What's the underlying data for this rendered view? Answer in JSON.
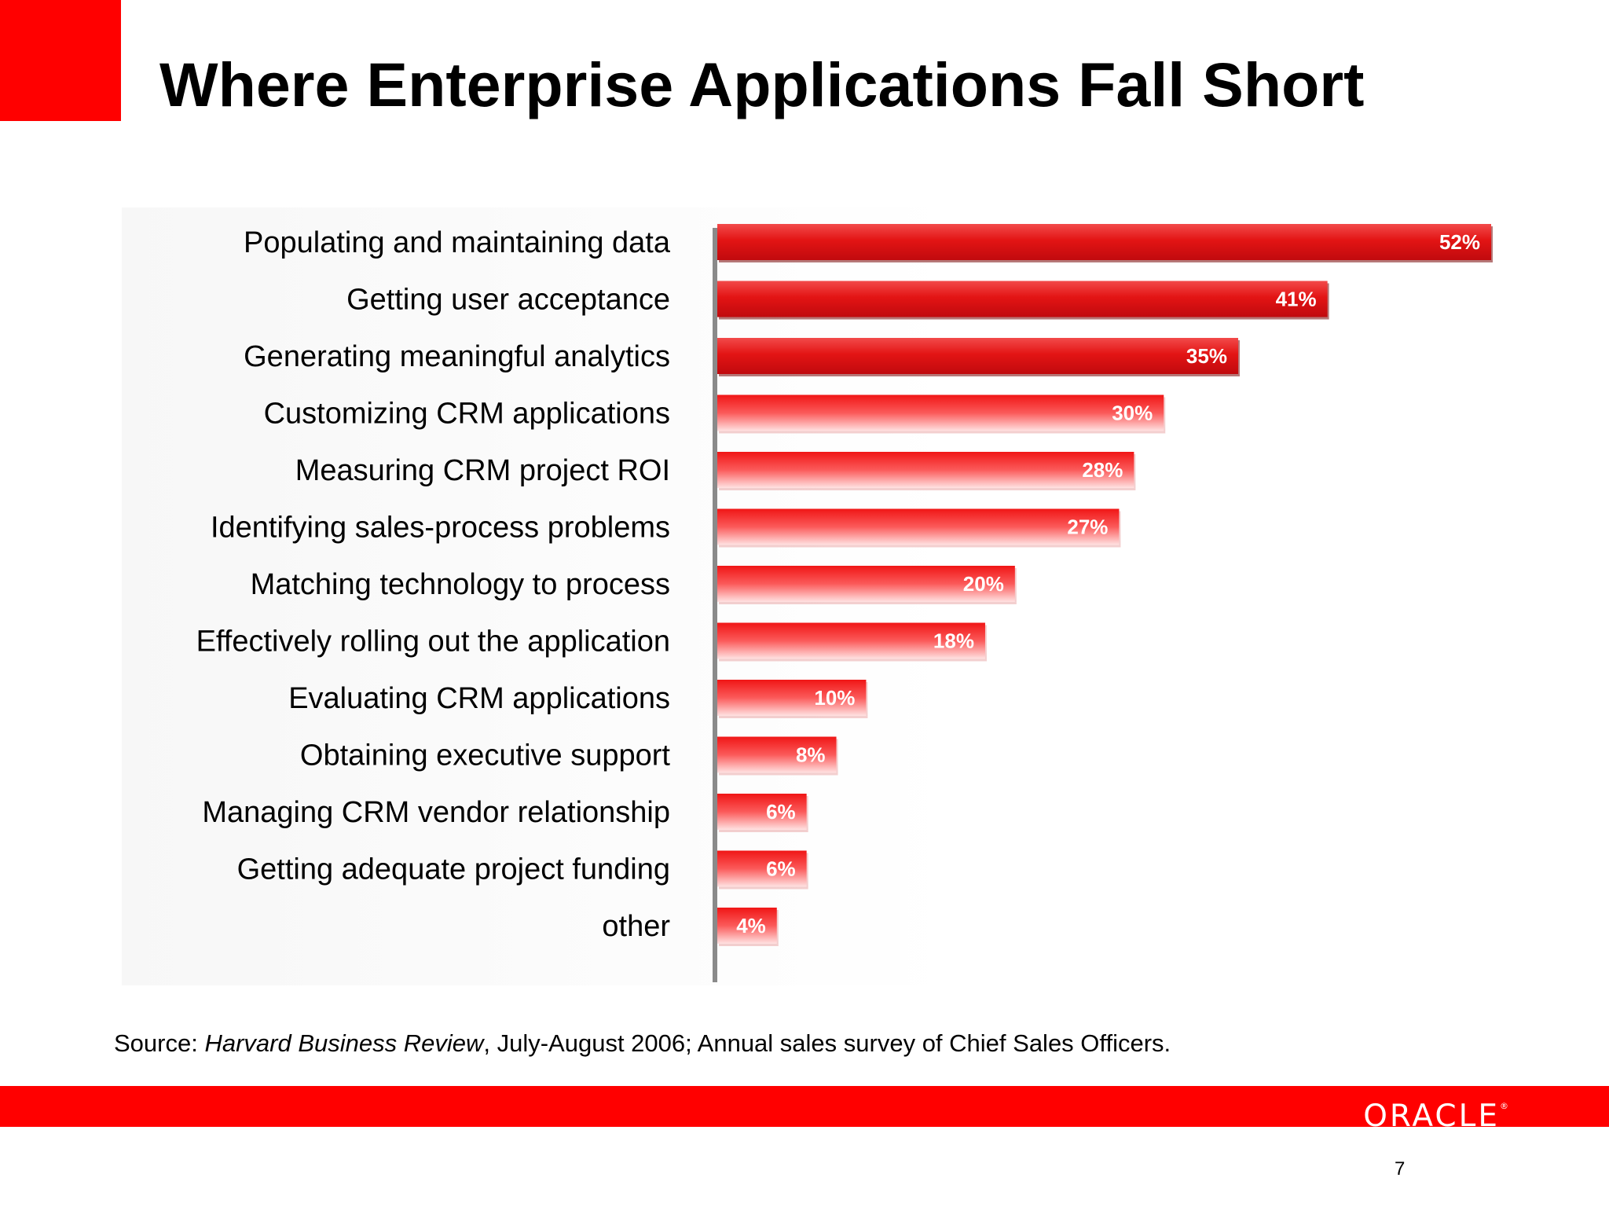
{
  "slide": {
    "title": "Where Enterprise Applications Fall Short",
    "page_number": "7",
    "logo_text": "ORACLE",
    "source": {
      "prefix": "Source: ",
      "publication": "Harvard Business Review",
      "suffix": ", July-August 2006; Annual sales survey of Chief Sales Officers."
    },
    "colors": {
      "brand_red": "#ff0000",
      "bar_dark_red": "#d40f12",
      "bar_red": "#ee1c1c",
      "bar_light": "#ffd0d0"
    }
  },
  "chart_data": {
    "type": "bar",
    "orientation": "horizontal",
    "categories": [
      "Populating and maintaining data",
      "Getting user acceptance",
      "Generating meaningful analytics",
      "Customizing CRM applications",
      "Measuring CRM project ROI",
      "Identifying sales-process problems",
      "Matching technology to process",
      "Effectively rolling out the application",
      "Evaluating CRM applications",
      "Obtaining executive support",
      "Managing CRM vendor relationship",
      "Getting adequate project funding",
      "other"
    ],
    "values": [
      52,
      41,
      35,
      30,
      28,
      27,
      20,
      18,
      10,
      8,
      6,
      6,
      4
    ],
    "value_labels": [
      "52%",
      "41%",
      "35%",
      "30%",
      "28%",
      "27%",
      "20%",
      "18%",
      "10%",
      "8%",
      "6%",
      "6%",
      "4%"
    ],
    "unit": "%",
    "xlim": [
      0,
      52
    ],
    "grid": false,
    "legend": "none"
  }
}
